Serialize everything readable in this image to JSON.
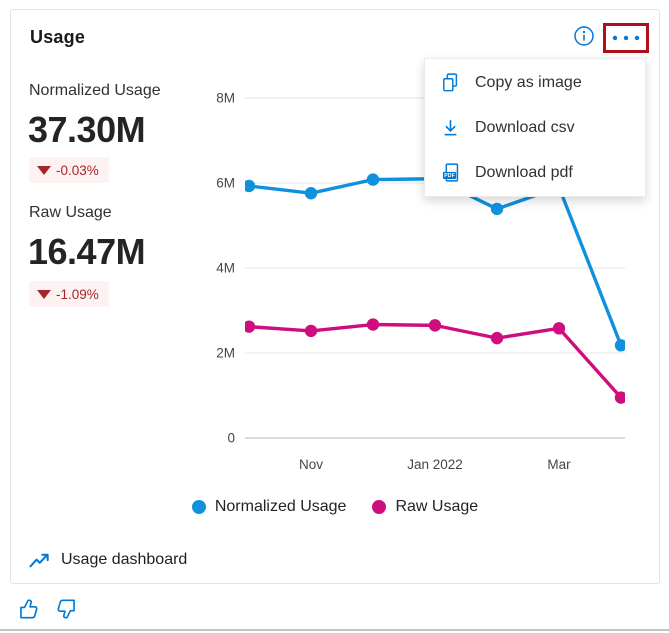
{
  "card": {
    "title": "Usage",
    "metrics": [
      {
        "label": "Normalized Usage",
        "value": "37.30M",
        "delta": "-0.03%",
        "direction": "down"
      },
      {
        "label": "Raw Usage",
        "value": "16.47M",
        "delta": "-1.09%",
        "direction": "down"
      }
    ],
    "menu": {
      "items": [
        {
          "icon": "copy-icon",
          "label": "Copy as image"
        },
        {
          "icon": "download-icon",
          "label": "Download csv"
        },
        {
          "icon": "pdf-icon",
          "label": "Download pdf"
        }
      ]
    },
    "footer_link": {
      "icon": "trending-up-icon",
      "label": "Usage dashboard"
    },
    "colors": {
      "accent": "#0078d4",
      "negative_text": "#a4262c",
      "negative_bg": "#fdf1f2",
      "focus_outline": "#b10e1c",
      "card_border": "#e3e3e3"
    }
  },
  "chart_data": {
    "type": "line",
    "title": "Usage",
    "num_points": 7,
    "x_tick_labels": [
      {
        "index": 1,
        "label": "Nov"
      },
      {
        "index": 3,
        "label": "Jan 2022"
      },
      {
        "index": 5,
        "label": "Mar"
      }
    ],
    "y_tick_values": [
      0,
      2,
      4,
      6,
      8
    ],
    "y_tick_labels": [
      "0",
      "2M",
      "4M",
      "6M",
      "8M"
    ],
    "ylim": [
      0,
      8
    ],
    "unit": "millions",
    "grid": true,
    "legend_position": "bottom",
    "series": [
      {
        "name": "Normalized Usage",
        "color": "#0f91dd",
        "values": [
          5.93,
          5.76,
          6.08,
          6.1,
          5.39,
          5.9,
          2.18
        ]
      },
      {
        "name": "Raw Usage",
        "color": "#ce0e7e",
        "values": [
          2.62,
          2.52,
          2.67,
          2.65,
          2.35,
          2.58,
          0.95
        ]
      }
    ]
  }
}
